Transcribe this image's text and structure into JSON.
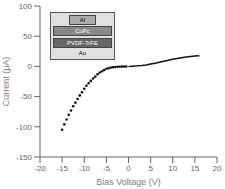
{
  "chart_data": {
    "type": "line",
    "xlabel": "Bias Voltage (V)",
    "ylabel": "Current (μA)",
    "xlim": [
      -20,
      20
    ],
    "ylim": [
      -150,
      100
    ],
    "xticks": [
      -20,
      -15,
      -10,
      -5,
      0,
      5,
      10,
      15,
      20
    ],
    "yticks": [
      -150,
      -100,
      -50,
      0,
      50,
      100
    ],
    "grid": false,
    "annotations": [
      "Al",
      "CuPc",
      "PVDF-TrFE",
      "Au"
    ],
    "series": [
      {
        "type": "scatter",
        "color": "#111111",
        "x": [
          -15.0,
          -14.5,
          -14.0,
          -13.5,
          -13.0,
          -12.5,
          -12.0,
          -11.5,
          -11.0,
          -10.5,
          -10.0,
          -9.5,
          -9.0,
          -8.5,
          -8.0,
          -7.5,
          -7.0,
          -6.5,
          -6.0,
          -5.5,
          -5.0,
          -4.5,
          -4.0,
          -3.5,
          -3.0,
          -2.5,
          -2.0,
          -1.5,
          -1.0,
          -0.5
        ],
        "values": [
          -105,
          -96,
          -88,
          -80,
          -73,
          -66,
          -60,
          -54,
          -48,
          -43,
          -37,
          -32,
          -28,
          -24,
          -20,
          -17,
          -13,
          -10,
          -8,
          -6,
          -4,
          -3,
          -2,
          -1.5,
          -1.0,
          -0.7,
          -0.5,
          -0.3,
          -0.15,
          -0.05
        ]
      },
      {
        "type": "line",
        "color": "#111111",
        "x": [
          0,
          1,
          2,
          3,
          4,
          5,
          6,
          7,
          8,
          9,
          10,
          11,
          12,
          13,
          14,
          15,
          16
        ],
        "values": [
          0,
          0.4,
          0.9,
          1.6,
          2.5,
          3.8,
          5.2,
          6.8,
          8.5,
          10.2,
          11.8,
          13.2,
          14.5,
          15.6,
          16.5,
          17.2,
          17.8
        ]
      }
    ]
  }
}
